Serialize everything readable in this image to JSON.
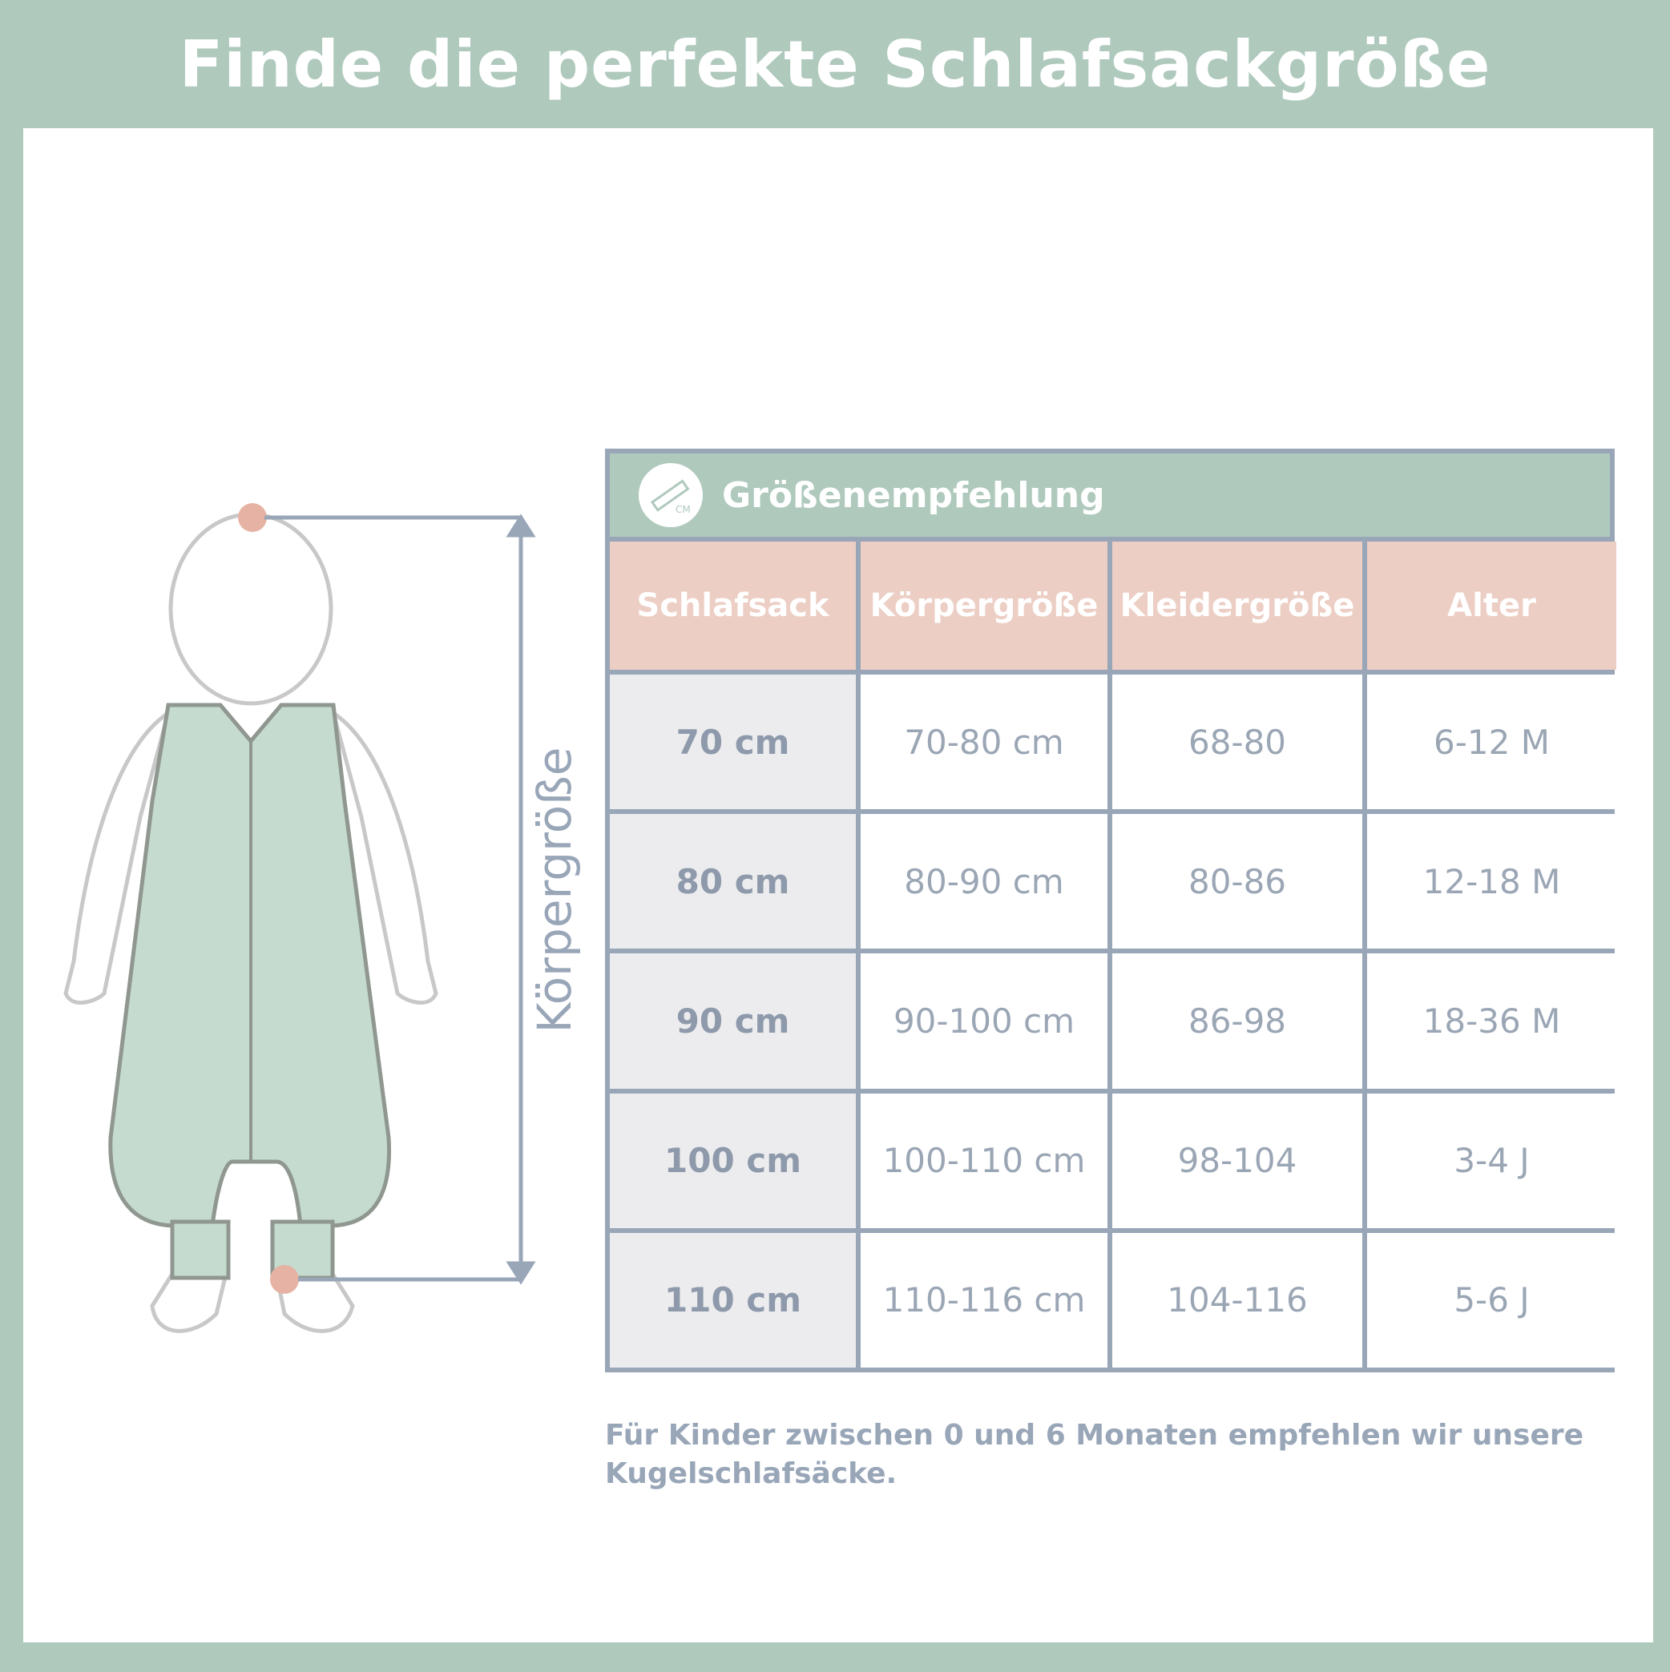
{
  "title": "Finde die perfekte Schlafsackgröße",
  "table": {
    "icon": "ruler-cm-icon",
    "icon_text": "CM",
    "heading": "Größenempfehlung",
    "columns": [
      "Schlafsack",
      "Körpergröße",
      "Kleidergröße",
      "Alter"
    ],
    "rows": [
      [
        "70 cm",
        "70-80 cm",
        "68-80",
        "6-12 M"
      ],
      [
        "80 cm",
        "80-90 cm",
        "80-86",
        "12-18 M"
      ],
      [
        "90 cm",
        "90-100 cm",
        "86-98",
        "18-36 M"
      ],
      [
        "100 cm",
        "100-110 cm",
        "98-104",
        "3-4 J"
      ],
      [
        "110 cm",
        "110-116 cm",
        "104-116",
        "5-6 J"
      ]
    ]
  },
  "measure_label": "Körpergröße",
  "note": "Für Kinder zwischen 0 und 6 Monaten empfehlen wir unsere Kugelschlafsäcke.",
  "colors": {
    "frame": "#afc9bd",
    "header": "#eccec4",
    "border": "#98a6b8",
    "text": "#98a6b8"
  }
}
